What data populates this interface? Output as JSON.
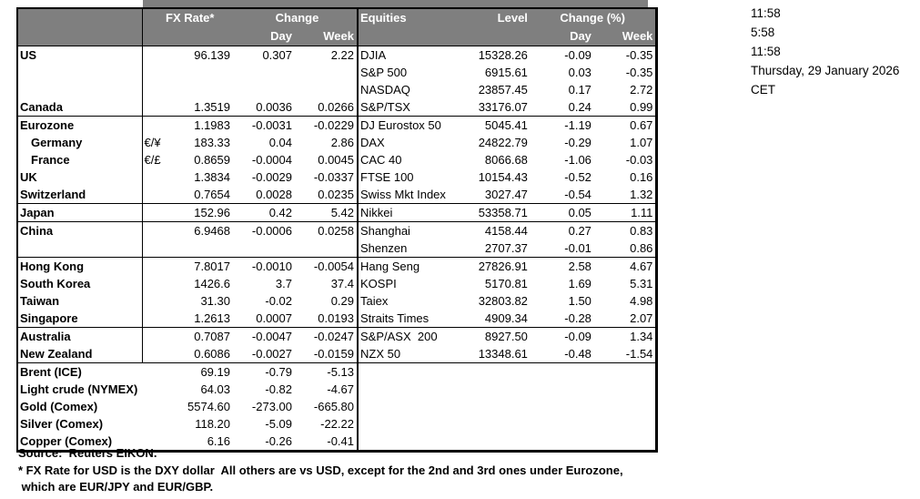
{
  "colors": {
    "header_bg": "#7f7f7f",
    "header_text": "#ffffff",
    "border": "#000000"
  },
  "labels": {
    "fx_rate": "FX Rate*",
    "change": "Change",
    "day": "Day",
    "week": "Week",
    "equities": "Equities",
    "level": "Level",
    "change_pct": "Change (%)"
  },
  "section_break_rows": [
    4,
    9,
    10,
    12,
    16,
    18
  ],
  "fx_rows": [
    {
      "name": "US",
      "sym": "",
      "rate": "96.139",
      "day": "0.307",
      "week": "2.22"
    },
    {
      "name": "",
      "sym": "",
      "rate": "",
      "day": "",
      "week": ""
    },
    {
      "name": "",
      "sym": "",
      "rate": "",
      "day": "",
      "week": ""
    },
    {
      "name": "Canada",
      "sym": "",
      "rate": "1.3519",
      "day": "0.0036",
      "week": "0.0266"
    },
    {
      "name": "Eurozone",
      "sym": "",
      "rate": "1.1983",
      "day": "-0.0031",
      "week": "-0.0229"
    },
    {
      "name": "Germany",
      "indent": true,
      "sym": "€/¥",
      "rate": "183.33",
      "day": "0.04",
      "week": "2.86"
    },
    {
      "name": "France",
      "indent": true,
      "sym": "€/£",
      "rate": "0.8659",
      "day": "-0.0004",
      "week": "0.0045"
    },
    {
      "name": "UK",
      "sym": "",
      "rate": "1.3834",
      "day": "-0.0029",
      "week": "-0.0337"
    },
    {
      "name": "Switzerland",
      "sym": "",
      "rate": "0.7654",
      "day": "0.0028",
      "week": "0.0235"
    },
    {
      "name": "Japan",
      "sym": "",
      "rate": "152.96",
      "day": "0.42",
      "week": "5.42"
    },
    {
      "name": "China",
      "sym": "",
      "rate": "6.9468",
      "day": "-0.0006",
      "week": "0.0258"
    },
    {
      "name": "",
      "sym": "",
      "rate": "",
      "day": "",
      "week": ""
    },
    {
      "name": "Hong Kong",
      "sym": "",
      "rate": "7.8017",
      "day": "-0.0010",
      "week": "-0.0054"
    },
    {
      "name": "South Korea",
      "sym": "",
      "rate": "1426.6",
      "day": "3.7",
      "week": "37.4"
    },
    {
      "name": "Taiwan",
      "sym": "",
      "rate": "31.30",
      "day": "-0.02",
      "week": "0.29"
    },
    {
      "name": "Singapore",
      "sym": "",
      "rate": "1.2613",
      "day": "0.0007",
      "week": "0.0193"
    },
    {
      "name": "Australia",
      "sym": "",
      "rate": "0.7087",
      "day": "-0.0047",
      "week": "-0.0247"
    },
    {
      "name": "New Zealand",
      "sym": "",
      "rate": "0.6086",
      "day": "-0.0027",
      "week": "-0.0159"
    },
    {
      "name": "Brent (ICE)",
      "merged": true,
      "rate": "69.19",
      "day": "-0.79",
      "week": "-5.13"
    },
    {
      "name": "Light crude (NYMEX)",
      "merged": true,
      "rate": "64.03",
      "day": "-0.82",
      "week": "-4.67"
    },
    {
      "name": "Gold (Comex)",
      "merged": true,
      "rate": "5574.60",
      "day": "-273.00",
      "week": "-665.80"
    },
    {
      "name": "Silver (Comex)",
      "merged": true,
      "rate": "118.20",
      "day": "-5.09",
      "week": "-22.22"
    },
    {
      "name": "Copper (Comex)",
      "merged": true,
      "rate": "6.16",
      "day": "-0.26",
      "week": "-0.41"
    }
  ],
  "eq_rows": [
    {
      "name": "DJIA",
      "level": "15328.26",
      "day": "-0.09",
      "week": "-0.35"
    },
    {
      "name": "S&P 500",
      "level": "6915.61",
      "day": "0.03",
      "week": "-0.35"
    },
    {
      "name": "NASDAQ",
      "level": "23857.45",
      "day": "0.17",
      "week": "2.72"
    },
    {
      "name": "S&P/TSX",
      "level": "33176.07",
      "day": "0.24",
      "week": "0.99"
    },
    {
      "name": "DJ Eurostox 50",
      "level": "5045.41",
      "day": "-1.19",
      "week": "0.67"
    },
    {
      "name": "DAX",
      "level": "24822.79",
      "day": "-0.29",
      "week": "1.07"
    },
    {
      "name": "CAC 40",
      "level": "8066.68",
      "day": "-1.06",
      "week": "-0.03"
    },
    {
      "name": "FTSE 100",
      "level": "10154.43",
      "day": "-0.52",
      "week": "0.16"
    },
    {
      "name": "Swiss Mkt Index",
      "level": "3027.47",
      "day": "-0.54",
      "week": "1.32"
    },
    {
      "name": "Nikkei",
      "level": "53358.71",
      "day": "0.05",
      "week": "1.11"
    },
    {
      "name": "Shanghai",
      "level": "4158.44",
      "day": "0.27",
      "week": "0.83"
    },
    {
      "name": "Shenzen",
      "level": "2707.37",
      "day": "-0.01",
      "week": "0.86"
    },
    {
      "name": "Hang Seng",
      "level": "27826.91",
      "day": "2.58",
      "week": "4.67"
    },
    {
      "name": "KOSPI",
      "level": "5170.81",
      "day": "1.69",
      "week": "5.31"
    },
    {
      "name": "Taiex",
      "level": "32803.82",
      "day": "1.50",
      "week": "4.98"
    },
    {
      "name": "Straits Times",
      "level": "4909.34",
      "day": "-0.28",
      "week": "2.07"
    },
    {
      "name": "S&P/ASX  200",
      "level": "8927.50",
      "day": "-0.09",
      "week": "1.34"
    },
    {
      "name": "NZX 50",
      "level": "13348.61",
      "day": "-0.48",
      "week": "-1.54"
    }
  ],
  "timestamps": [
    "11:58",
    "5:58",
    "11:58",
    "Thursday, 29 January 2026",
    "CET"
  ],
  "footnotes": [
    "Source:  Reuters EIKON.",
    "* FX Rate for USD is the DXY dollar  All others are vs USD, except for the 2nd and 3rd ones under Eurozone,",
    " which are EUR/JPY and EUR/GBP."
  ]
}
